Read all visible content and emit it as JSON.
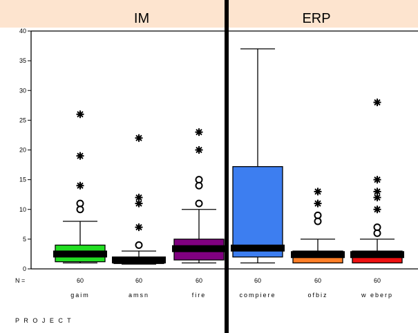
{
  "chart_data": {
    "type": "boxplot",
    "groups": [
      {
        "label": "IM",
        "color": "#fde4cf"
      },
      {
        "label": "ERP",
        "color": "#fde4cf"
      }
    ],
    "ylim": [
      0,
      40
    ],
    "yticks": [
      "0",
      "5",
      "10",
      "15",
      "20",
      "25",
      "30",
      "35",
      "40"
    ],
    "n_label": "N =",
    "xlabel": "P R O J E C T",
    "categories": [
      {
        "label": "gaim",
        "n": "60",
        "color": "#22dd22",
        "group": 0,
        "min": 1,
        "q1": 1.2,
        "median": 2.5,
        "q3": 4,
        "max": 8,
        "outliers": [
          10,
          11
        ],
        "extremes": [
          14,
          19,
          26
        ]
      },
      {
        "label": "amsn",
        "n": "60",
        "color": "#111111",
        "group": 0,
        "min": 0.8,
        "q1": 0.9,
        "median": 1.5,
        "q3": 1.8,
        "max": 3,
        "outliers": [
          4
        ],
        "extremes": [
          7,
          11,
          12,
          22
        ]
      },
      {
        "label": "fire",
        "n": "60",
        "color": "#800080",
        "group": 0,
        "min": 1,
        "q1": 1.5,
        "median": 3.4,
        "q3": 5,
        "max": 10,
        "outliers": [
          11,
          14,
          15
        ],
        "extremes": [
          20,
          23
        ]
      },
      {
        "label": "compiere",
        "n": "60",
        "color": "#3d7ef0",
        "group": 1,
        "min": 1,
        "q1": 2,
        "median": 3.5,
        "q3": 17.2,
        "max": 37,
        "outliers": [],
        "extremes": []
      },
      {
        "label": "ofbiz",
        "n": "60",
        "color": "#ff7f27",
        "group": 1,
        "min": 1,
        "q1": 1,
        "median": 2.4,
        "q3": 3,
        "max": 5,
        "outliers": [
          8,
          9
        ],
        "extremes": [
          11,
          13
        ]
      },
      {
        "label": "w eberp",
        "n": "60",
        "color": "#ee1111",
        "group": 1,
        "min": 1,
        "q1": 1,
        "median": 2.4,
        "q3": 3,
        "max": 5,
        "outliers": [
          6,
          7
        ],
        "extremes": [
          10,
          12,
          13,
          15,
          28
        ]
      }
    ]
  }
}
